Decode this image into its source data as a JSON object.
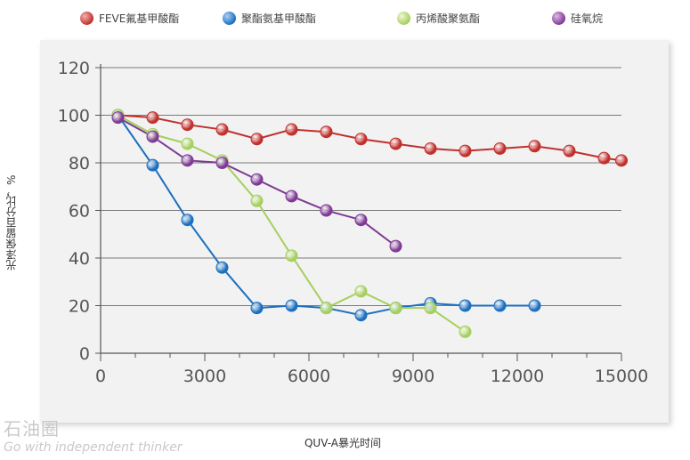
{
  "chart_data": {
    "type": "line",
    "xlabel": "QUV-A暴光时间",
    "ylabel": "光泽保留百分比，%",
    "xlim": [
      0,
      15000
    ],
    "ylim": [
      0,
      120
    ],
    "xticks": [
      0,
      3000,
      6000,
      9000,
      12000,
      15000
    ],
    "yticks": [
      0,
      20,
      40,
      60,
      80,
      100,
      120
    ],
    "xtick_labels": [
      "0",
      "3000",
      "6000",
      "9000",
      "12000",
      "15000"
    ],
    "ytick_labels": [
      "0",
      "20",
      "40",
      "60",
      "80",
      "100",
      "120"
    ],
    "grid": "horizontal",
    "legend_position": "top",
    "series": [
      {
        "name": "FEVE氟基甲酸酯",
        "color": "#c0302c",
        "x": [
          500,
          1500,
          2500,
          3500,
          4500,
          5500,
          6500,
          7500,
          8500,
          9500,
          10500,
          11500,
          12500,
          13500,
          14500,
          15000
        ],
        "y": [
          100,
          99,
          96,
          94,
          90,
          94,
          93,
          90,
          88,
          86,
          85,
          86,
          87,
          85,
          82,
          81
        ]
      },
      {
        "name": "聚酯氨基甲酸酯",
        "color": "#1c6fbf",
        "x": [
          500,
          1500,
          2500,
          3500,
          4500,
          5500,
          6500,
          7500,
          8500,
          9500,
          10500,
          11500,
          12500
        ],
        "y": [
          100,
          79,
          56,
          36,
          19,
          20,
          19,
          16,
          19,
          21,
          20,
          20,
          20
        ]
      },
      {
        "name": "丙烯酸聚氨酯",
        "color": "#a6cf5e",
        "x": [
          500,
          1500,
          2500,
          3500,
          4500,
          5500,
          6500,
          7500,
          8500,
          9500,
          10500
        ],
        "y": [
          100,
          92,
          88,
          81,
          64,
          41,
          19,
          26,
          19,
          19,
          9
        ]
      },
      {
        "name": "硅氧烷",
        "color": "#7e3a94",
        "x": [
          500,
          1500,
          2500,
          3500,
          4500,
          5500,
          6500,
          7500,
          8500
        ],
        "y": [
          99,
          91,
          81,
          80,
          73,
          66,
          60,
          56,
          45
        ]
      }
    ]
  },
  "watermark": {
    "logo": "石油圈",
    "slogan": "Go with independent thinker"
  }
}
